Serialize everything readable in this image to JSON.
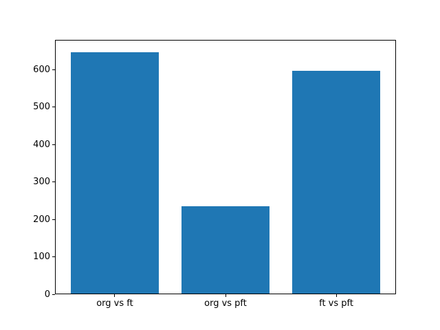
{
  "chart_data": {
    "type": "bar",
    "categories": [
      "org vs ft",
      "org vs pft",
      "ft vs pft"
    ],
    "values": [
      648,
      235,
      598
    ],
    "bar_color": "#1f77b4",
    "bar_width": 0.8,
    "yticks": [
      0,
      100,
      200,
      300,
      400,
      500,
      600
    ],
    "ylim": [
      0,
      680
    ],
    "xlim": [
      -0.54,
      2.54
    ],
    "grid": false,
    "legend": null,
    "title": "",
    "xlabel": "",
    "ylabel": ""
  },
  "colors": {
    "background": "#ffffff",
    "spine": "#000000",
    "tick_text": "#000000"
  }
}
